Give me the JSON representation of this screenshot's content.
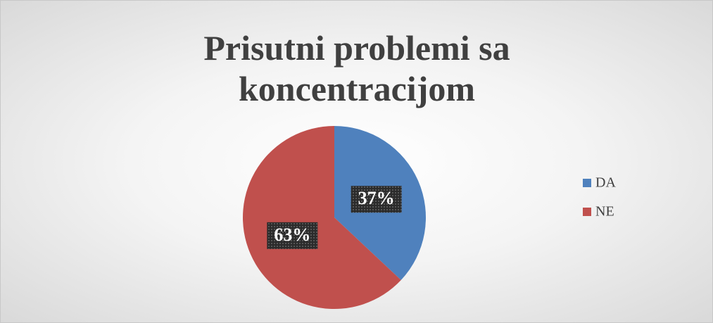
{
  "chart_data": {
    "type": "pie",
    "title": "Prisutni problemi sa koncentracijom",
    "categories": [
      "DA",
      "NE"
    ],
    "values": [
      37,
      63
    ],
    "value_labels": [
      "37%",
      "63%"
    ],
    "colors": [
      "#4f81bd",
      "#c0504d"
    ],
    "legend": "right"
  }
}
